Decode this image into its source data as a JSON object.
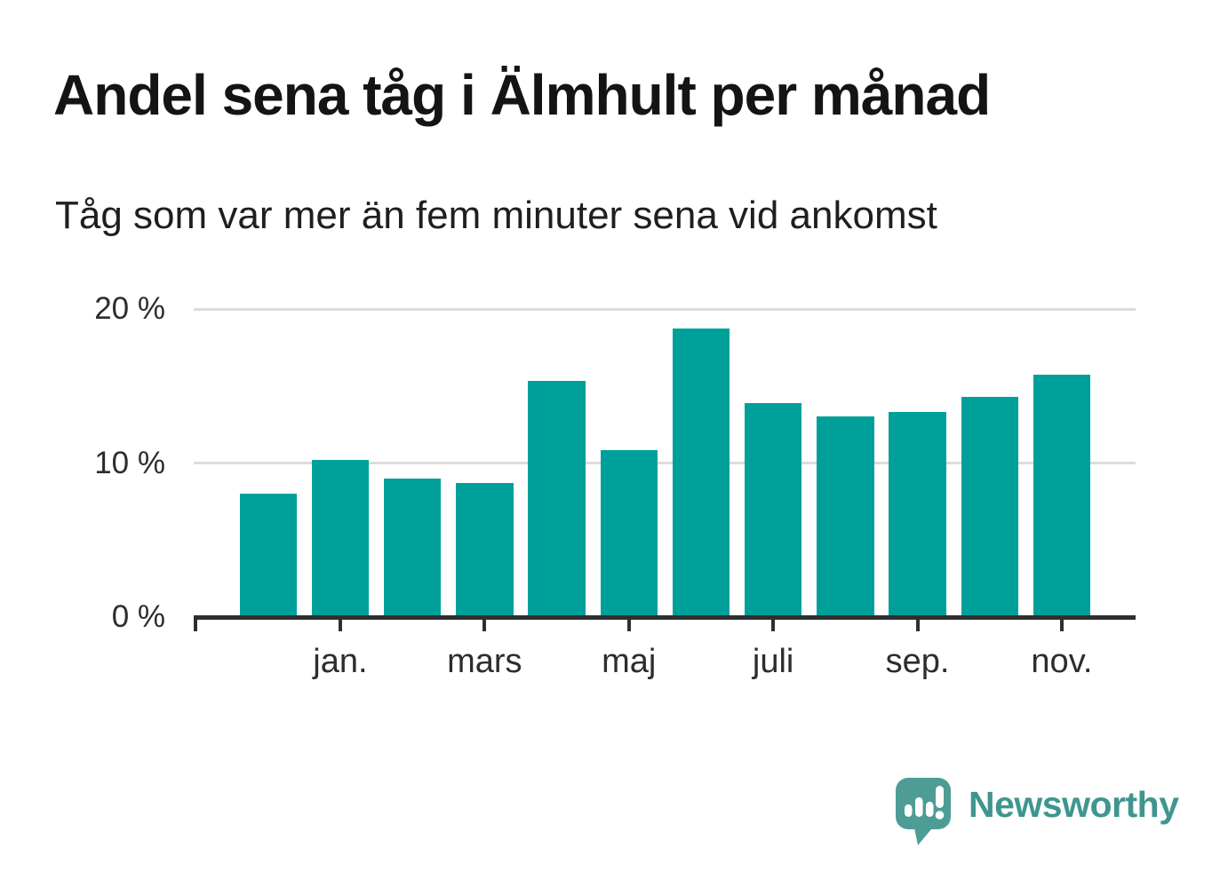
{
  "title": "Andel sena tåg i Älmhult per månad",
  "subtitle": "Tåg som var mer än fem minuter sena vid ankomst",
  "chart_data": {
    "type": "bar",
    "values": [
      7.9,
      10.1,
      8.9,
      8.6,
      15.2,
      10.7,
      18.6,
      13.8,
      12.9,
      13.2,
      14.2,
      15.6
    ],
    "x_tick_labels": [
      "jan.",
      "mars",
      "maj",
      "juli",
      "sep.",
      "nov."
    ],
    "x_tick_bar_indexes": [
      1,
      3,
      5,
      7,
      9,
      11
    ],
    "y_tick_labels": [
      "20 %",
      "10 %",
      "0 %"
    ],
    "y_tick_values": [
      20,
      10,
      0
    ],
    "ylim": [
      0,
      21
    ],
    "grid": "horizontal-at-10-and-20",
    "legend": "none",
    "bar_color": "#00a09a"
  },
  "colors": {
    "bar": "#00a09a",
    "gridline": "#dcdcdc",
    "axis": "#2f2f2f",
    "axis_label": "#2d2d2d",
    "title_text": "#141414",
    "brand_teal": "#3e968f",
    "brand_icon_teal": "#4e9c96"
  },
  "branding": {
    "logo_text": "Newsworthy"
  }
}
